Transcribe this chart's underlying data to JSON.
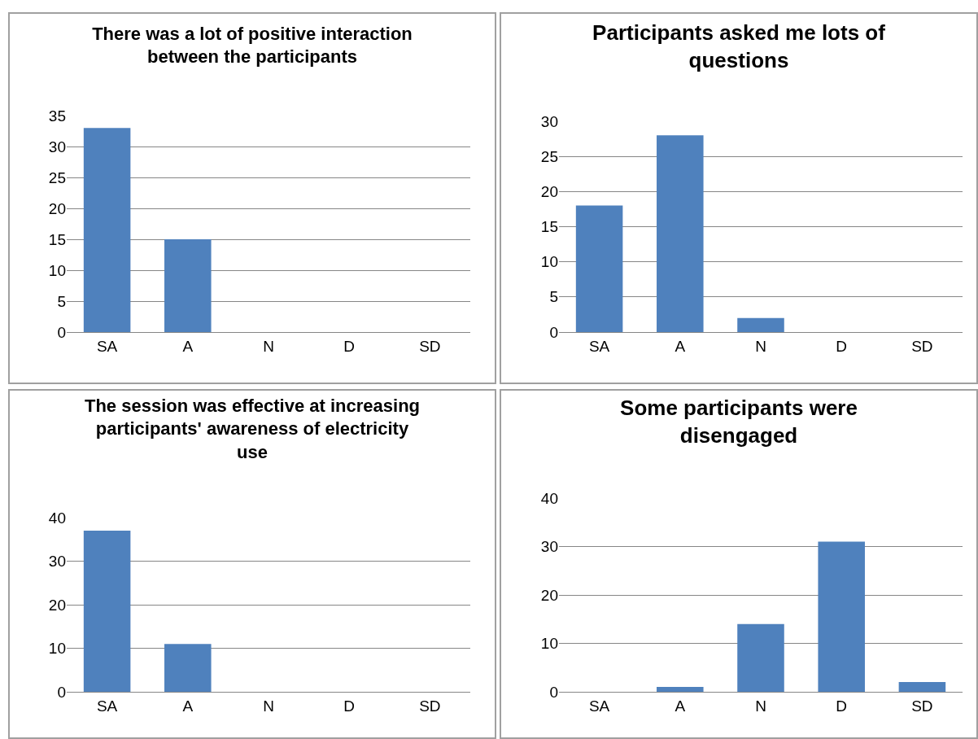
{
  "chart_data": [
    {
      "type": "bar",
      "title": "There was a lot of positive interaction between the participants",
      "categories": [
        "SA",
        "A",
        "N",
        "D",
        "SD"
      ],
      "values": [
        33,
        15,
        0,
        0,
        0
      ],
      "color": "#4f81bd",
      "ylim": [
        0,
        35
      ],
      "yticks": [
        0,
        5,
        10,
        15,
        20,
        25,
        30,
        35
      ],
      "grid": "y"
    },
    {
      "type": "bar",
      "title": "Participants asked me lots of questions",
      "categories": [
        "SA",
        "A",
        "N",
        "D",
        "SD"
      ],
      "values": [
        18,
        28,
        2,
        0,
        0
      ],
      "color": "#4f81bd",
      "ylim": [
        0,
        30
      ],
      "yticks": [
        0,
        5,
        10,
        15,
        20,
        25,
        30
      ],
      "grid": "y"
    },
    {
      "type": "bar",
      "title": "The session was effective at increasing participants' awareness of electricity use",
      "categories": [
        "SA",
        "A",
        "N",
        "D",
        "SD"
      ],
      "values": [
        37,
        11,
        0,
        0,
        0
      ],
      "color": "#4f81bd",
      "ylim": [
        0,
        40
      ],
      "yticks": [
        0,
        10,
        20,
        30,
        40
      ],
      "grid": "y"
    },
    {
      "type": "bar",
      "title": "Some participants were disengaged",
      "categories": [
        "SA",
        "A",
        "N",
        "D",
        "SD"
      ],
      "values": [
        0,
        1,
        14,
        31,
        2
      ],
      "color": "#4f81bd",
      "ylim": [
        0,
        40
      ],
      "yticks": [
        0,
        10,
        20,
        30,
        40
      ],
      "grid": "y"
    }
  ]
}
